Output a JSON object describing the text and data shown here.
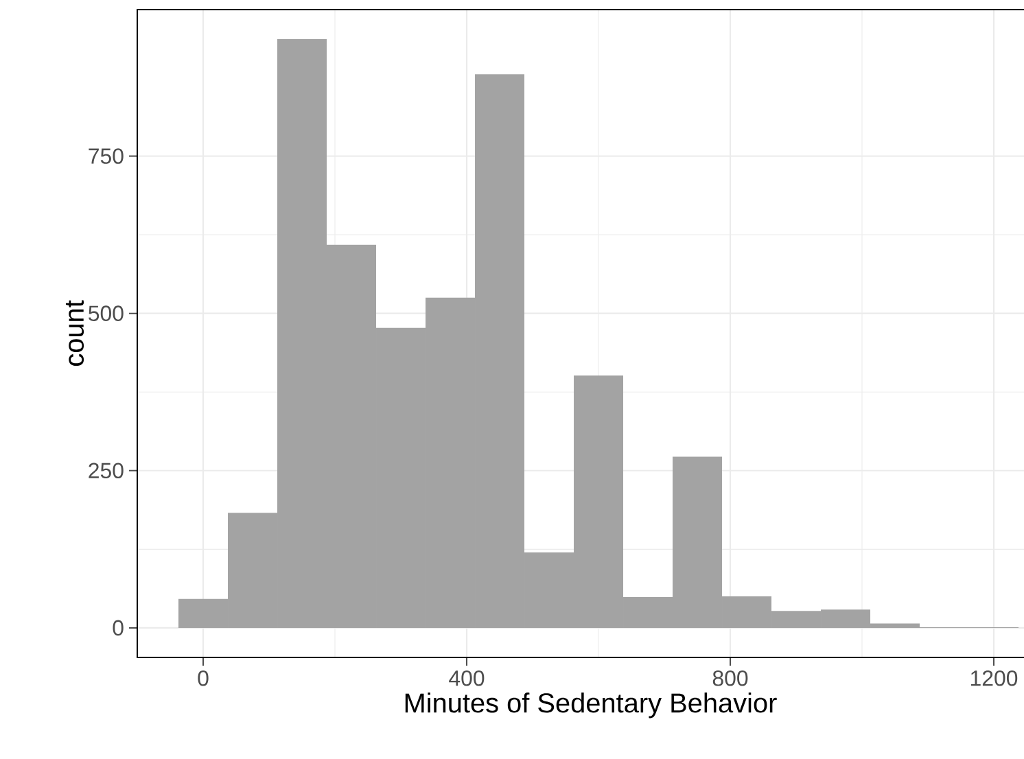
{
  "chart_data": {
    "type": "histogram",
    "xlabel": "Minutes of Sedentary Behavior",
    "ylabel": "count",
    "bins": [
      -37.5,
      37.5,
      112.5,
      187.5,
      262.5,
      337.5,
      412.5,
      487.5,
      562.5,
      637.5,
      712.5,
      787.5,
      862.5,
      937.5,
      1012.5,
      1087.5,
      1162.5,
      1237.5
    ],
    "values": [
      46,
      183,
      936,
      609,
      477,
      525,
      880,
      120,
      401,
      49,
      272,
      50,
      27,
      29,
      7,
      1,
      1
    ],
    "color": "#a3a3a3",
    "xlim": [
      -100,
      1275
    ],
    "ylim": [
      -47,
      983
    ],
    "xticks": [
      0,
      400,
      800,
      1200
    ],
    "yticks": [
      0,
      250,
      500,
      750
    ],
    "grid": true
  }
}
